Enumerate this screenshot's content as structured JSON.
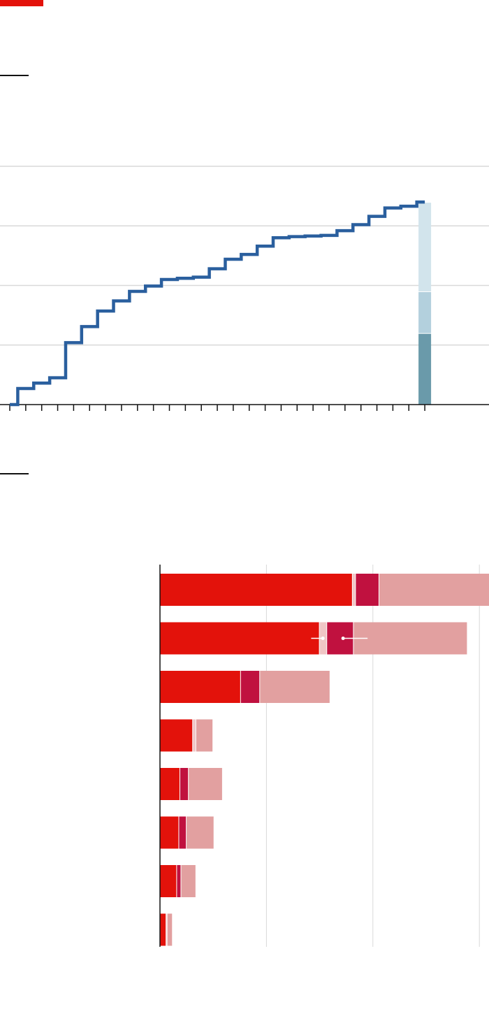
{
  "colors": {
    "brand": "#e3120b",
    "step_line": "#2a5f9e",
    "grid": "#d9d9d9",
    "axis": "#121212",
    "stack_dark": "#6a9aaa",
    "stack_mid": "#b3d0dd",
    "stack_light": "#d2e4ec",
    "bar_primary": "#e3120b",
    "bar_secondary": "#c0113f",
    "bar_tertiary": "#e2a0a0",
    "bar_thin": "#f0c5c5"
  },
  "chart_data": [
    {
      "type": "line",
      "subtype": "step",
      "title": "",
      "xlabel": "",
      "ylabel": "",
      "grid": true,
      "ylim": [
        0,
        4
      ],
      "xlim": [
        -1,
        28
      ],
      "x": [
        0,
        1,
        2,
        3,
        4,
        5,
        6,
        7,
        8,
        9,
        10,
        11,
        12,
        13,
        14,
        15,
        16,
        17,
        18,
        19,
        20,
        21,
        22,
        23,
        24,
        25,
        26
      ],
      "series": [
        {
          "values": [
            0.0,
            0.27,
            0.36,
            0.45,
            1.04,
            1.31,
            1.57,
            1.74,
            1.9,
            1.99,
            2.1,
            2.12,
            2.14,
            2.28,
            2.44,
            2.52,
            2.66,
            2.8,
            2.82,
            2.83,
            2.84,
            2.92,
            3.02,
            3.16,
            3.3,
            3.33,
            3.4
          ]
        }
      ],
      "stacked_bar": {
        "x": 26,
        "segments": [
          {
            "value": 1.2,
            "color": "#6a9aaa"
          },
          {
            "value": 0.7,
            "color": "#b3d0dd"
          },
          {
            "value": 1.5,
            "color": "#d2e4ec"
          }
        ]
      }
    },
    {
      "type": "bar",
      "orientation": "horizontal",
      "stacked": true,
      "title": "",
      "xlabel": "",
      "ylabel": "",
      "grid": true,
      "xlim": [
        0,
        300
      ],
      "categories": [
        "",
        "",
        "",
        "",
        "",
        "",
        "",
        ""
      ],
      "series": [
        {
          "values": [
            181,
            150,
            76,
            31,
            19,
            18,
            16,
            6
          ],
          "color": "#e3120b"
        },
        {
          "values": [
            3,
            7,
            0,
            3,
            0,
            0,
            0,
            1
          ],
          "color": "#f0c5c5"
        },
        {
          "values": [
            22,
            25,
            18,
            0,
            8,
            7,
            4,
            0
          ],
          "color": "#c0113f"
        },
        {
          "values": [
            104,
            107,
            66,
            16,
            32,
            26,
            14,
            5
          ],
          "color": "#e2a0a0"
        }
      ],
      "range_markers": [
        {
          "category_index": 1,
          "from": 142,
          "to": 153
        },
        {
          "category_index": 1,
          "from": 172,
          "to": 195
        }
      ]
    }
  ]
}
